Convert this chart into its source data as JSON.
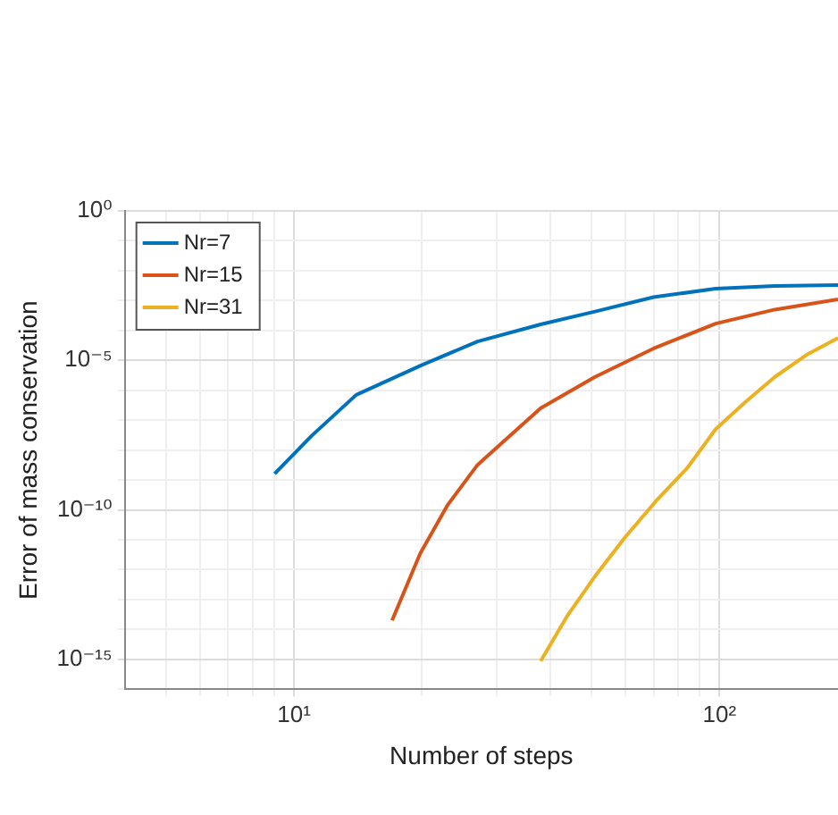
{
  "chart_data": {
    "type": "line",
    "xlabel": "Number of steps",
    "ylabel": "Error of mass conservation",
    "log": "xy",
    "grid": true,
    "legend": "top left",
    "marker": "none",
    "line_style": "solid",
    "xlim": [
      4,
      190
    ],
    "ylim": [
      1e-16,
      1
    ],
    "xticks": [
      {
        "value": 5,
        "label": null
      },
      {
        "value": 6,
        "label": null
      },
      {
        "value": 7,
        "label": null
      },
      {
        "value": 8,
        "label": null
      },
      {
        "value": 9,
        "label": null
      },
      {
        "value": 10,
        "label": "10¹"
      },
      {
        "value": 20,
        "label": null
      },
      {
        "value": 30,
        "label": null
      },
      {
        "value": 40,
        "label": null
      },
      {
        "value": 50,
        "label": null
      },
      {
        "value": 60,
        "label": null
      },
      {
        "value": 70,
        "label": null
      },
      {
        "value": 80,
        "label": null
      },
      {
        "value": 90,
        "label": null
      },
      {
        "value": 100,
        "label": "10²"
      }
    ],
    "yticks": [
      {
        "value": 1e-16,
        "label": null
      },
      {
        "value": 1e-15,
        "label": "10⁻¹⁵"
      },
      {
        "value": 1e-14,
        "label": null
      },
      {
        "value": 1e-13,
        "label": null
      },
      {
        "value": 1e-12,
        "label": null
      },
      {
        "value": 1e-11,
        "label": null
      },
      {
        "value": 1e-10,
        "label": "10⁻¹⁰"
      },
      {
        "value": 1e-09,
        "label": null
      },
      {
        "value": 1e-08,
        "label": null
      },
      {
        "value": 1e-07,
        "label": null
      },
      {
        "value": 1e-06,
        "label": null
      },
      {
        "value": 1e-05,
        "label": "10⁻⁵"
      },
      {
        "value": 0.0001,
        "label": null
      },
      {
        "value": 0.001,
        "label": null
      },
      {
        "value": 0.01,
        "label": null
      },
      {
        "value": 0.1,
        "label": null
      },
      {
        "value": 1,
        "label": "10⁰"
      }
    ],
    "series": [
      {
        "name": "Nr=7",
        "color": "#0072bd",
        "x": [
          9,
          11,
          14,
          20,
          27,
          38,
          51,
          70,
          98,
          135,
          190
        ],
        "values": [
          1.6e-09,
          3e-08,
          7e-07,
          7e-06,
          4.3e-05,
          0.00016,
          0.00043,
          0.0013,
          0.0025,
          0.0031,
          0.0033
        ]
      },
      {
        "name": "Nr=15",
        "color": "#d95319",
        "x": [
          17,
          19.8,
          23,
          27,
          38,
          51,
          70,
          98,
          135,
          190
        ],
        "values": [
          2e-14,
          3.5e-12,
          1.5e-10,
          3.2e-09,
          2.5e-07,
          2.8e-06,
          2.5e-05,
          0.00017,
          0.0005,
          0.0011
        ]
      },
      {
        "name": "Nr=31",
        "color": "#edb120",
        "x": [
          38,
          44,
          51,
          60,
          71,
          84,
          98,
          115,
          135,
          160,
          190
        ],
        "values": [
          8.7e-16,
          3e-14,
          6e-13,
          1.2e-11,
          2e-10,
          2.5e-09,
          5e-08,
          4e-07,
          2.8e-06,
          1.5e-05,
          5.6e-05
        ]
      }
    ]
  }
}
